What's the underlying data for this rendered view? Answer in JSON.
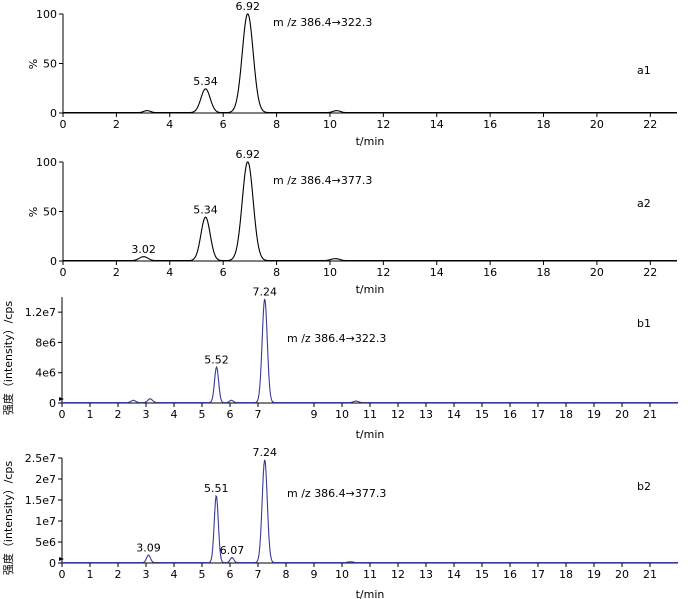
{
  "chart_data": [
    {
      "type": "line",
      "panel_label": "a1",
      "ion": "m /z  386.4→322.3",
      "ylabel": "%",
      "xlabel": "t/min",
      "xlim": [
        0,
        23
      ],
      "ylim": [
        0,
        100
      ],
      "x_ticks": [
        "0",
        "2",
        "4",
        "6",
        "8",
        "10",
        "12",
        "14",
        "16",
        "18",
        "20",
        "22"
      ],
      "y_ticks": [
        "0",
        "50",
        "100"
      ],
      "line_color": "#000000",
      "peaks": [
        {
          "rt": 3.15,
          "height": 2,
          "width": 0.28,
          "label": ""
        },
        {
          "rt": 5.34,
          "height": 24,
          "width": 0.38,
          "label": "5.34"
        },
        {
          "rt": 6.92,
          "height": 100,
          "width": 0.45,
          "label": "6.92"
        },
        {
          "rt": 10.25,
          "height": 2,
          "width": 0.3,
          "label": ""
        }
      ]
    },
    {
      "type": "line",
      "panel_label": "a2",
      "ion": "m /z  386.4→377.3",
      "ylabel": "%",
      "xlabel": "t/min",
      "xlim": [
        0,
        23
      ],
      "ylim": [
        0,
        100
      ],
      "x_ticks": [
        "0",
        "2",
        "4",
        "6",
        "8",
        "10",
        "12",
        "14",
        "16",
        "18",
        "20",
        "22"
      ],
      "y_ticks": [
        "0",
        "50",
        "100"
      ],
      "line_color": "#000000",
      "peaks": [
        {
          "rt": 3.02,
          "height": 4,
          "width": 0.35,
          "label": "3.02"
        },
        {
          "rt": 5.34,
          "height": 44,
          "width": 0.38,
          "label": "5.34"
        },
        {
          "rt": 6.92,
          "height": 100,
          "width": 0.45,
          "label": "6.92"
        },
        {
          "rt": 10.2,
          "height": 2,
          "width": 0.35,
          "label": ""
        }
      ]
    },
    {
      "type": "line",
      "panel_label": "b1",
      "ion": "m /z  386.4→322.3",
      "ylabel": "强度（intensity）/cps",
      "xlabel": "t/min",
      "xlim": [
        0,
        22
      ],
      "ylim": [
        0,
        14000000
      ],
      "x_ticks": [
        "0",
        "1",
        "2",
        "3",
        "4",
        "5",
        "6",
        "7",
        "9",
        "10",
        "11",
        "12",
        "13",
        "14",
        "15",
        "16",
        "17",
        "18",
        "19",
        "20",
        "21"
      ],
      "x_tick_values": [
        0,
        1,
        2,
        3,
        4,
        5,
        6,
        7,
        9,
        10,
        11,
        12,
        13,
        14,
        15,
        16,
        17,
        18,
        19,
        20,
        21
      ],
      "y_ticks": [
        "0",
        "4e6",
        "8e6",
        "1.2e7"
      ],
      "y_tick_values": [
        0,
        4000000,
        8000000,
        12000000
      ],
      "line_color": "#3a3a9a",
      "peaks": [
        {
          "rt": 2.55,
          "height": 300000,
          "width": 0.18,
          "label": ""
        },
        {
          "rt": 3.15,
          "height": 500000,
          "width": 0.18,
          "label": ""
        },
        {
          "rt": 5.52,
          "height": 4700000,
          "width": 0.16,
          "label": "5.52"
        },
        {
          "rt": 6.05,
          "height": 300000,
          "width": 0.15,
          "label": ""
        },
        {
          "rt": 7.24,
          "height": 13700000,
          "width": 0.2,
          "label": "7.24"
        },
        {
          "rt": 10.5,
          "height": 200000,
          "width": 0.2,
          "label": ""
        }
      ]
    },
    {
      "type": "line",
      "panel_label": "b2",
      "ion": "m /z  386.4→377.3",
      "ylabel": "强度（intensity）/cps",
      "xlabel": "t/min",
      "xlim": [
        0,
        22
      ],
      "ylim": [
        0,
        25000000
      ],
      "x_ticks": [
        "0",
        "1",
        "2",
        "3",
        "4",
        "5",
        "6",
        "7",
        "8",
        "9",
        "10",
        "11",
        "12",
        "13",
        "14",
        "15",
        "16",
        "17",
        "18",
        "19",
        "20",
        "21"
      ],
      "x_tick_values": [
        0,
        1,
        2,
        3,
        4,
        5,
        6,
        7,
        8,
        9,
        10,
        11,
        12,
        13,
        14,
        15,
        16,
        17,
        18,
        19,
        20,
        21
      ],
      "y_ticks": [
        "0",
        "5e6",
        "1e7",
        "1.5e7",
        "2e7",
        "2.5e7"
      ],
      "y_tick_values": [
        0,
        5000000,
        10000000,
        15000000,
        20000000,
        25000000
      ],
      "line_color": "#3a3a9a",
      "peaks": [
        {
          "rt": 3.09,
          "height": 1800000,
          "width": 0.15,
          "label": "3.09"
        },
        {
          "rt": 5.51,
          "height": 16000000,
          "width": 0.16,
          "label": "5.51"
        },
        {
          "rt": 6.07,
          "height": 1200000,
          "width": 0.14,
          "label": "6.07"
        },
        {
          "rt": 7.24,
          "height": 24500000,
          "width": 0.2,
          "label": "7.24"
        },
        {
          "rt": 10.3,
          "height": 200000,
          "width": 0.2,
          "label": ""
        }
      ]
    }
  ]
}
